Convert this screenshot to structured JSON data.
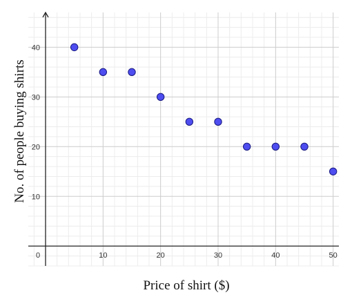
{
  "chart_data": {
    "type": "scatter",
    "title": "",
    "xlabel": "Price of shirt ($)",
    "ylabel": "No. of people buying shirts",
    "xlim": [
      -3,
      51
    ],
    "ylim": [
      -4,
      47
    ],
    "x_ticks": [
      0,
      10,
      20,
      30,
      40,
      50
    ],
    "y_ticks": [
      10,
      20,
      30,
      40
    ],
    "grid": true,
    "series": [
      {
        "x": [
          5,
          10,
          15,
          20,
          25,
          30,
          35,
          40,
          45,
          50
        ],
        "y": [
          40,
          35,
          35,
          30,
          25,
          25,
          20,
          20,
          20,
          15
        ]
      }
    ]
  },
  "colors": {
    "point_fill": "#4d4df0",
    "point_stroke": "#1a1a80",
    "major_grid": "#cccccc",
    "minor_grid": "#ececec",
    "axis": "#222222"
  }
}
